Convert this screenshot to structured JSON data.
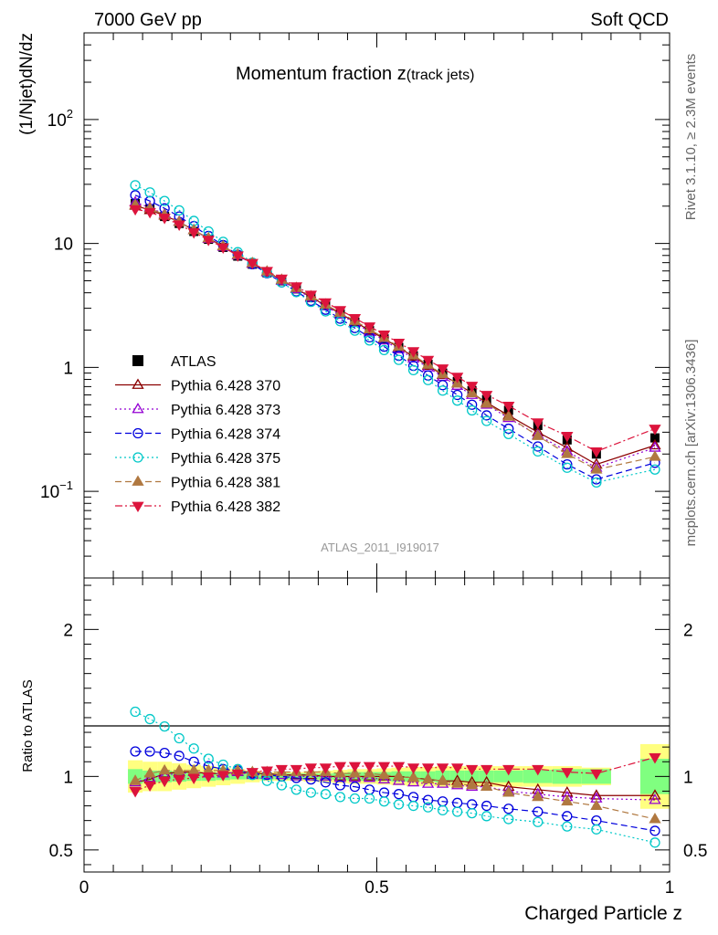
{
  "header": {
    "left": "7000 GeV pp",
    "right": "Soft QCD"
  },
  "side_labels": {
    "rivet": "Rivet 3.1.10, ≥ 2.3M events",
    "source": "mcplots.cern.ch [arXiv:1306.3436]"
  },
  "colors": {
    "ATLAS": "#000000",
    "Pythia 6.428 370": "#8b0000",
    "Pythia 6.428 373": "#9400d3",
    "Pythia 6.428 374": "#0000dd",
    "Pythia 6.428 375": "#00c8c8",
    "Pythia 6.428 381": "#b07840",
    "Pythia 6.428 382": "#dc143c",
    "band_inner": "#80ff80",
    "band_outer": "#ffff80"
  },
  "chart_data": [
    {
      "type": "scatter",
      "title": "Momentum fraction z",
      "title_sub": "(track jets)",
      "ylabel": "(1/Njet)dN/dz",
      "yscale": "log",
      "ylim": [
        0.02,
        500
      ],
      "xlim": [
        0,
        1
      ],
      "yticks": [
        {
          "value": 0.1,
          "label": "10",
          "exp": "−1"
        },
        {
          "value": 1,
          "label": "1",
          "exp": ""
        },
        {
          "value": 10,
          "label": "10",
          "exp": ""
        },
        {
          "value": 100,
          "label": "10",
          "exp": "2"
        }
      ],
      "watermark": "ATLAS_2011_I919017",
      "legend_position": "middle-left",
      "x": [
        0.0875,
        0.1125,
        0.1375,
        0.1625,
        0.1875,
        0.2125,
        0.2375,
        0.2625,
        0.2875,
        0.3125,
        0.3375,
        0.3625,
        0.3875,
        0.4125,
        0.4375,
        0.4625,
        0.4875,
        0.5125,
        0.5375,
        0.5625,
        0.5875,
        0.6125,
        0.6375,
        0.6625,
        0.6875,
        0.725,
        0.775,
        0.825,
        0.875,
        0.975
      ],
      "series": [
        {
          "name": "ATLAS",
          "marker": "square",
          "line": "none",
          "values": [
            21.0,
            19.0,
            16.5,
            14.5,
            12.5,
            10.8,
            9.3,
            7.9,
            6.8,
            5.8,
            5.0,
            4.3,
            3.65,
            3.15,
            2.7,
            2.32,
            1.98,
            1.7,
            1.45,
            1.24,
            1.06,
            0.9,
            0.77,
            0.65,
            0.55,
            0.45,
            0.34,
            0.26,
            0.2,
            0.27
          ]
        },
        {
          "name": "Pythia 6.428 370",
          "marker": "triangle-up-open",
          "line": "solid",
          "values": [
            20.2,
            18.6,
            16.8,
            14.9,
            12.8,
            11.0,
            9.5,
            8.1,
            6.9,
            5.9,
            5.05,
            4.33,
            3.68,
            3.17,
            2.72,
            2.33,
            1.99,
            1.7,
            1.45,
            1.22,
            1.03,
            0.87,
            0.74,
            0.62,
            0.52,
            0.41,
            0.3,
            0.225,
            0.165,
            0.235
          ]
        },
        {
          "name": "Pythia 6.428 373",
          "marker": "triangle-up-open",
          "line": "dotted",
          "values": [
            21.5,
            19.5,
            17.2,
            15.0,
            12.8,
            10.9,
            9.4,
            8.0,
            6.85,
            5.85,
            5.0,
            4.28,
            3.64,
            3.12,
            2.67,
            2.28,
            1.94,
            1.65,
            1.4,
            1.18,
            1.0,
            0.84,
            0.71,
            0.6,
            0.5,
            0.39,
            0.285,
            0.21,
            0.155,
            0.225
          ]
        },
        {
          "name": "Pythia 6.428 374",
          "marker": "circle-open",
          "line": "dashed",
          "values": [
            24.5,
            22.0,
            19.2,
            16.5,
            13.8,
            11.5,
            9.7,
            8.1,
            6.8,
            5.75,
            4.85,
            4.1,
            3.45,
            2.92,
            2.47,
            2.08,
            1.75,
            1.47,
            1.24,
            1.03,
            0.86,
            0.72,
            0.6,
            0.5,
            0.41,
            0.32,
            0.23,
            0.165,
            0.125,
            0.17
          ]
        },
        {
          "name": "Pythia 6.428 375",
          "marker": "circle-open",
          "line": "dotted",
          "values": [
            29.5,
            25.8,
            22.0,
            18.5,
            15.2,
            12.5,
            10.3,
            8.5,
            7.0,
            5.8,
            4.85,
            4.05,
            3.38,
            2.83,
            2.36,
            1.98,
            1.65,
            1.38,
            1.15,
            0.95,
            0.79,
            0.65,
            0.54,
            0.45,
            0.37,
            0.29,
            0.21,
            0.155,
            0.118,
            0.15
          ]
        },
        {
          "name": "Pythia 6.428 381",
          "marker": "triangle-up-filled",
          "line": "dashed",
          "values": [
            20.5,
            19.2,
            17.0,
            14.9,
            12.8,
            11.0,
            9.5,
            8.1,
            6.95,
            5.95,
            5.1,
            4.38,
            3.75,
            3.22,
            2.76,
            2.37,
            2.03,
            1.73,
            1.47,
            1.25,
            1.05,
            0.88,
            0.74,
            0.62,
            0.51,
            0.4,
            0.28,
            0.2,
            0.15,
            0.19
          ]
        },
        {
          "name": "Pythia 6.428 382",
          "marker": "triangle-down-filled",
          "line": "dashdot",
          "values": [
            18.9,
            17.9,
            16.1,
            14.2,
            12.3,
            10.7,
            9.3,
            8.0,
            6.95,
            6.0,
            5.2,
            4.5,
            3.86,
            3.35,
            2.9,
            2.5,
            2.14,
            1.84,
            1.58,
            1.35,
            1.15,
            0.98,
            0.84,
            0.71,
            0.6,
            0.49,
            0.36,
            0.28,
            0.21,
            0.32
          ]
        }
      ]
    },
    {
      "type": "scatter",
      "xlabel": "Charged Particle z",
      "ylabel": "Ratio to ATLAS",
      "ylim": [
        0.35,
        2.35
      ],
      "xlim": [
        0,
        1
      ],
      "yticks": [
        0.5,
        1,
        2
      ],
      "xticks": [
        0,
        0.5,
        1
      ],
      "reference_line": 1,
      "x": [
        0.0875,
        0.1125,
        0.1375,
        0.1625,
        0.1875,
        0.2125,
        0.2375,
        0.2625,
        0.2875,
        0.3125,
        0.3375,
        0.3625,
        0.3875,
        0.4125,
        0.4375,
        0.4625,
        0.4875,
        0.5125,
        0.5375,
        0.5625,
        0.5875,
        0.6125,
        0.6375,
        0.6625,
        0.6875,
        0.725,
        0.775,
        0.825,
        0.875,
        0.975
      ],
      "bins": [
        [
          0.075,
          0.1
        ],
        [
          0.1,
          0.125
        ],
        [
          0.125,
          0.15
        ],
        [
          0.15,
          0.175
        ],
        [
          0.175,
          0.2
        ],
        [
          0.2,
          0.225
        ],
        [
          0.225,
          0.25
        ],
        [
          0.25,
          0.275
        ],
        [
          0.275,
          0.3
        ],
        [
          0.3,
          0.325
        ],
        [
          0.325,
          0.35
        ],
        [
          0.35,
          0.375
        ],
        [
          0.375,
          0.4
        ],
        [
          0.4,
          0.425
        ],
        [
          0.425,
          0.45
        ],
        [
          0.45,
          0.475
        ],
        [
          0.475,
          0.5
        ],
        [
          0.5,
          0.525
        ],
        [
          0.525,
          0.55
        ],
        [
          0.55,
          0.575
        ],
        [
          0.575,
          0.6
        ],
        [
          0.6,
          0.625
        ],
        [
          0.625,
          0.65
        ],
        [
          0.65,
          0.675
        ],
        [
          0.675,
          0.7
        ],
        [
          0.7,
          0.75
        ],
        [
          0.75,
          0.8
        ],
        [
          0.8,
          0.85
        ],
        [
          0.85,
          0.9
        ],
        [
          0.95,
          1.0
        ]
      ],
      "band_inner": [
        0.05,
        0.04,
        0.04,
        0.035,
        0.03,
        0.03,
        0.025,
        0.02,
        0.02,
        0.02,
        0.02,
        0.02,
        0.02,
        0.02,
        0.025,
        0.03,
        0.03,
        0.03,
        0.035,
        0.035,
        0.035,
        0.04,
        0.04,
        0.04,
        0.04,
        0.04,
        0.045,
        0.05,
        0.05,
        0.12
      ],
      "band_outer": [
        0.11,
        0.1,
        0.1,
        0.09,
        0.08,
        0.07,
        0.06,
        0.05,
        0.04,
        0.03,
        0.03,
        0.03,
        0.035,
        0.04,
        0.045,
        0.05,
        0.05,
        0.055,
        0.06,
        0.065,
        0.065,
        0.07,
        0.07,
        0.07,
        0.07,
        0.07,
        0.07,
        0.07,
        0.06,
        0.22
      ],
      "series": [
        {
          "name": "Pythia 6.428 370",
          "marker": "triangle-up-open",
          "line": "solid",
          "values": [
            0.96,
            0.98,
            1.02,
            1.03,
            1.03,
            1.02,
            1.02,
            1.03,
            1.02,
            1.02,
            1.01,
            1.01,
            1.01,
            1.0,
            1.0,
            1.0,
            1.0,
            1.0,
            1.0,
            0.99,
            0.98,
            0.97,
            0.97,
            0.96,
            0.96,
            0.93,
            0.91,
            0.89,
            0.87,
            0.87
          ]
        },
        {
          "name": "Pythia 6.428 373",
          "marker": "triangle-up-open",
          "line": "dotted",
          "values": [
            0.96,
            0.99,
            1.01,
            1.02,
            1.03,
            1.02,
            1.02,
            1.03,
            1.01,
            1.01,
            1.01,
            1.0,
            1.0,
            1.0,
            0.99,
            0.99,
            0.99,
            0.98,
            0.97,
            0.96,
            0.95,
            0.95,
            0.94,
            0.93,
            0.93,
            0.9,
            0.88,
            0.86,
            0.85,
            0.84
          ]
        },
        {
          "name": "Pythia 6.428 374",
          "marker": "circle-open",
          "line": "dashed",
          "values": [
            1.17,
            1.17,
            1.16,
            1.14,
            1.1,
            1.07,
            1.05,
            1.04,
            1.02,
            1.01,
            1.0,
            0.99,
            0.98,
            0.96,
            0.94,
            0.93,
            0.91,
            0.89,
            0.88,
            0.86,
            0.84,
            0.83,
            0.82,
            0.81,
            0.8,
            0.78,
            0.76,
            0.73,
            0.7,
            0.63
          ]
        },
        {
          "name": "Pythia 6.428 375",
          "marker": "circle-open",
          "line": "dotted",
          "values": [
            1.44,
            1.39,
            1.34,
            1.26,
            1.19,
            1.12,
            1.08,
            1.05,
            1.01,
            0.97,
            0.94,
            0.91,
            0.89,
            0.88,
            0.86,
            0.85,
            0.85,
            0.83,
            0.81,
            0.8,
            0.79,
            0.77,
            0.76,
            0.75,
            0.73,
            0.71,
            0.69,
            0.66,
            0.64,
            0.55
          ]
        },
        {
          "name": "Pythia 6.428 381",
          "marker": "triangle-up-filled",
          "line": "dashed",
          "values": [
            0.97,
            1.02,
            1.04,
            1.04,
            1.04,
            1.04,
            1.04,
            1.04,
            1.03,
            1.03,
            1.03,
            1.03,
            1.03,
            1.03,
            1.02,
            1.02,
            1.02,
            1.01,
            1.0,
            0.99,
            0.98,
            0.97,
            0.95,
            0.94,
            0.93,
            0.89,
            0.86,
            0.83,
            0.8,
            0.71
          ]
        },
        {
          "name": "Pythia 6.428 382",
          "marker": "triangle-down-filled",
          "line": "dashdot",
          "values": [
            0.9,
            0.94,
            0.97,
            0.98,
            0.99,
            1.0,
            1.01,
            1.02,
            1.03,
            1.04,
            1.05,
            1.05,
            1.06,
            1.06,
            1.07,
            1.07,
            1.07,
            1.07,
            1.07,
            1.06,
            1.06,
            1.06,
            1.06,
            1.05,
            1.05,
            1.05,
            1.05,
            1.03,
            1.02,
            1.13
          ]
        }
      ]
    }
  ]
}
